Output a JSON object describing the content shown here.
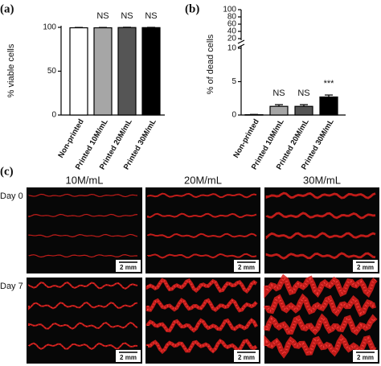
{
  "chart_data": [
    {
      "type": "bar",
      "panel_label": "(a)",
      "ylabel": "% viable cells",
      "categories": [
        "Non-printed",
        "Printed 10M/mL",
        "Printed 20M/mL",
        "Printed 30M/mL"
      ],
      "values": [
        99.5,
        99.5,
        99.8,
        99.7
      ],
      "errors": [
        0.4,
        0.4,
        0.3,
        0.3
      ],
      "colors": [
        "#ffffff",
        "#a6a6a6",
        "#555555",
        "#000000"
      ],
      "annotations": [
        {
          "index": 1,
          "text": "NS"
        },
        {
          "index": 2,
          "text": "NS"
        },
        {
          "index": 3,
          "text": "NS"
        }
      ],
      "ylim": [
        0,
        100
      ],
      "yticks": [
        0,
        50,
        100
      ]
    },
    {
      "type": "bar",
      "panel_label": "(b)",
      "ylabel": "% of dead cells",
      "categories": [
        "Non-printed",
        "Printed 10M/mL",
        "Printed 20M/mL",
        "Printed 30M/mL"
      ],
      "values": [
        0.05,
        1.3,
        1.3,
        2.7
      ],
      "errors": [
        0.05,
        0.25,
        0.25,
        0.3
      ],
      "colors": [
        "#ffffff",
        "#a6a6a6",
        "#555555",
        "#000000"
      ],
      "annotations": [
        {
          "index": 1,
          "text": "NS"
        },
        {
          "index": 2,
          "text": "NS"
        },
        {
          "index": 3,
          "text": "***"
        }
      ],
      "ylim": [
        0,
        10
      ],
      "yticks": [
        0,
        5,
        10
      ],
      "y_break_lim": [
        20,
        100
      ],
      "y_break_ticks": [
        20,
        40,
        60,
        80,
        100
      ]
    }
  ],
  "panel_c": {
    "label": "(c)",
    "columns": [
      "10M/mL",
      "20M/mL",
      "30M/mL"
    ],
    "rows": [
      "Day 0",
      "Day 7"
    ],
    "scale_bar": "2 mm"
  }
}
